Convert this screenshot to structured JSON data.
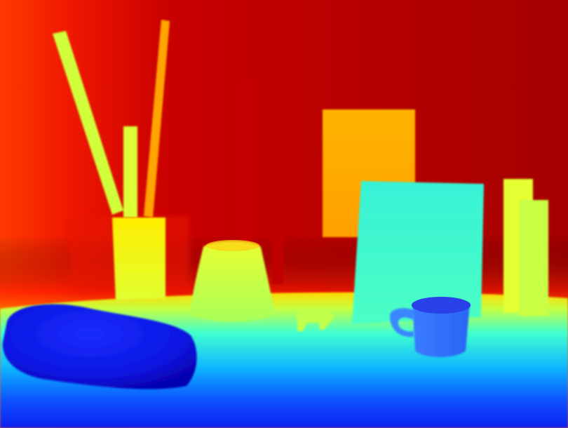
{
  "image": {
    "kind": "depth-map",
    "colormap": "jet",
    "palette": {
      "far": "#a40000",
      "far_edge": "#ff2a00",
      "mid_far": "#ffb000",
      "mid": "#ffe600",
      "mid_near": "#d8ff2a",
      "near": "#3ff7d8",
      "nearer": "#1aa6ff",
      "nearest": "#0b1ff0",
      "closest": "#0800b8"
    },
    "objects": [
      {
        "name": "back-wall",
        "depth": "far"
      },
      {
        "name": "background-poles",
        "depth": "far"
      },
      {
        "name": "picture-frame",
        "depth": "mid-far"
      },
      {
        "name": "tall-sticks",
        "depth": "mid"
      },
      {
        "name": "stick-holder",
        "depth": "mid"
      },
      {
        "name": "vase",
        "depth": "mid-near"
      },
      {
        "name": "white-board",
        "depth": "near"
      },
      {
        "name": "right-cylinders",
        "depth": "mid"
      },
      {
        "name": "toy-animal",
        "depth": "mid-near"
      },
      {
        "name": "mug",
        "depth": "nearer"
      },
      {
        "name": "cloth-roll",
        "depth": "nearest"
      },
      {
        "name": "table-surface",
        "depth": "near-to-nearest"
      }
    ]
  }
}
